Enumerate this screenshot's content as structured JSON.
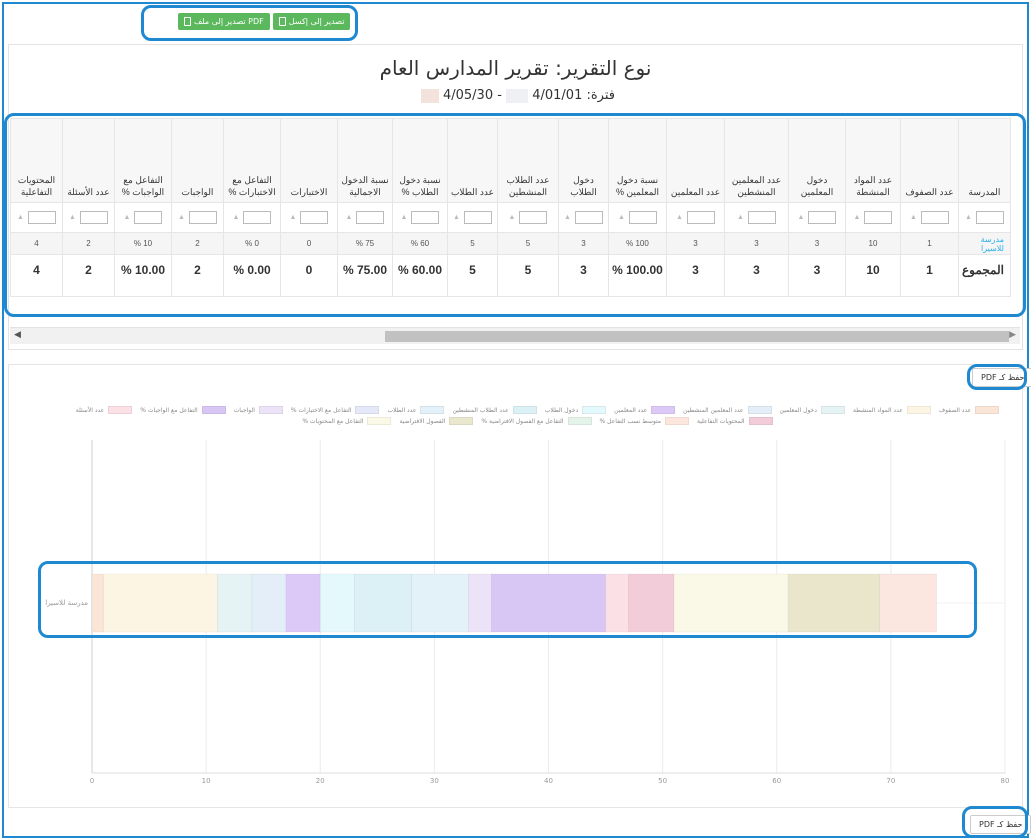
{
  "toolbar": {
    "export_excel": "تصدير إلى إكسل",
    "export_pdf": "تصدير إلى ملف PDF"
  },
  "report": {
    "title": "نوع التقرير: تقرير المدارس العام",
    "period_label": "فترة:",
    "period_from": "4/01/01",
    "period_separator": "-",
    "period_to": "4/05/30"
  },
  "table": {
    "headers": [
      "المدرسة",
      "عدد الصفوف",
      "عدد المواد المنشطة",
      "دخول المعلمين",
      "عدد المعلمين المنشطين",
      "عدد المعلمين",
      "نسبة دخول المعلمين %",
      "دخول الطلاب",
      "عدد الطلاب المنشطين",
      "عدد الطلاب",
      "نسبة دخول الطلاب %",
      "نسبة الدخول الاجمالية",
      "الاختبارات",
      "التفاعل مع الاختبارات %",
      "الواجبات",
      "التفاعل مع الواجبات %",
      "عدد الأسئلة",
      "المحتويات التفاعلية"
    ],
    "rows": [
      {
        "school": "مدرسة للاسيرا",
        "values": [
          "1",
          "10",
          "3",
          "3",
          "3",
          "100 %",
          "3",
          "5",
          "5",
          "60 %",
          "75 %",
          "0",
          "0 %",
          "2",
          "10 %",
          "2",
          "4"
        ]
      }
    ],
    "total": {
      "label": "المجموع",
      "values": [
        "1",
        "10",
        "3",
        "3",
        "3",
        "100.00 %",
        "3",
        "5",
        "5",
        "60.00 %",
        "75.00 %",
        "0",
        "0.00 %",
        "2",
        "10.00 %",
        "2",
        "4"
      ]
    }
  },
  "chart": {
    "save_pdf_top": "حفظ كـ PDF",
    "save_pdf_bottom": "حفظ كـ PDF"
  },
  "chart_data": {
    "type": "bar",
    "orientation": "horizontal",
    "stacked": true,
    "categories": [
      "مدرسة للاسيرا"
    ],
    "xlim": [
      0,
      80
    ],
    "x_ticks": [
      0,
      10,
      20,
      30,
      40,
      50,
      60,
      70,
      80
    ],
    "grid": true,
    "legend_position": "top",
    "series": [
      {
        "name": "عدد الصفوف",
        "values": [
          1
        ],
        "color": "#fbe5d6"
      },
      {
        "name": "عدد المواد المنشطة",
        "values": [
          10
        ],
        "color": "#fdf5e4"
      },
      {
        "name": "دخول المعلمين",
        "values": [
          3
        ],
        "color": "#e6f3f4"
      },
      {
        "name": "عدد المعلمين المنشطين",
        "values": [
          3
        ],
        "color": "#e3eef8"
      },
      {
        "name": "عدد المعلمين",
        "values": [
          3
        ],
        "color": "#dcc9f7"
      },
      {
        "name": "دخول الطلاب",
        "values": [
          3
        ],
        "color": "#e4f9fb"
      },
      {
        "name": "عدد الطلاب المنشطين",
        "values": [
          5
        ],
        "color": "#dcf1f5"
      },
      {
        "name": "عدد الطلاب",
        "values": [
          5
        ],
        "color": "#e3f1f9"
      },
      {
        "name": "التفاعل مع الاختبارات %",
        "values": [
          0
        ],
        "color": "#e5e8f8"
      },
      {
        "name": "الواجبات",
        "values": [
          2
        ],
        "color": "#ece3f9"
      },
      {
        "name": "التفاعل مع الواجبات %",
        "values": [
          10
        ],
        "color": "#d8c6f5"
      },
      {
        "name": "عدد الأسئلة",
        "values": [
          2
        ],
        "color": "#fbe0e6"
      },
      {
        "name": "المحتويات التفاعلية",
        "values": [
          4
        ],
        "color": "#f2cdd9"
      },
      {
        "name": "متوسط نسب التفاعل %",
        "values": [
          0
        ],
        "color": "#fde6de"
      },
      {
        "name": "التفاعل مع الفصول الافتراضية %",
        "values": [
          0
        ],
        "color": "#e5f4ea"
      },
      {
        "name": "الفصول الافتراضية",
        "values": [
          0
        ],
        "color": "#eae7cf"
      },
      {
        "name": "التفاعل مع المحتويات %",
        "values": [
          10
        ],
        "color": "#faf8e6"
      },
      {
        "name": "",
        "values": [
          8
        ],
        "color": "#e9e6cc"
      },
      {
        "name": "",
        "values": [
          5
        ],
        "color": "#fbe6e0"
      }
    ]
  }
}
